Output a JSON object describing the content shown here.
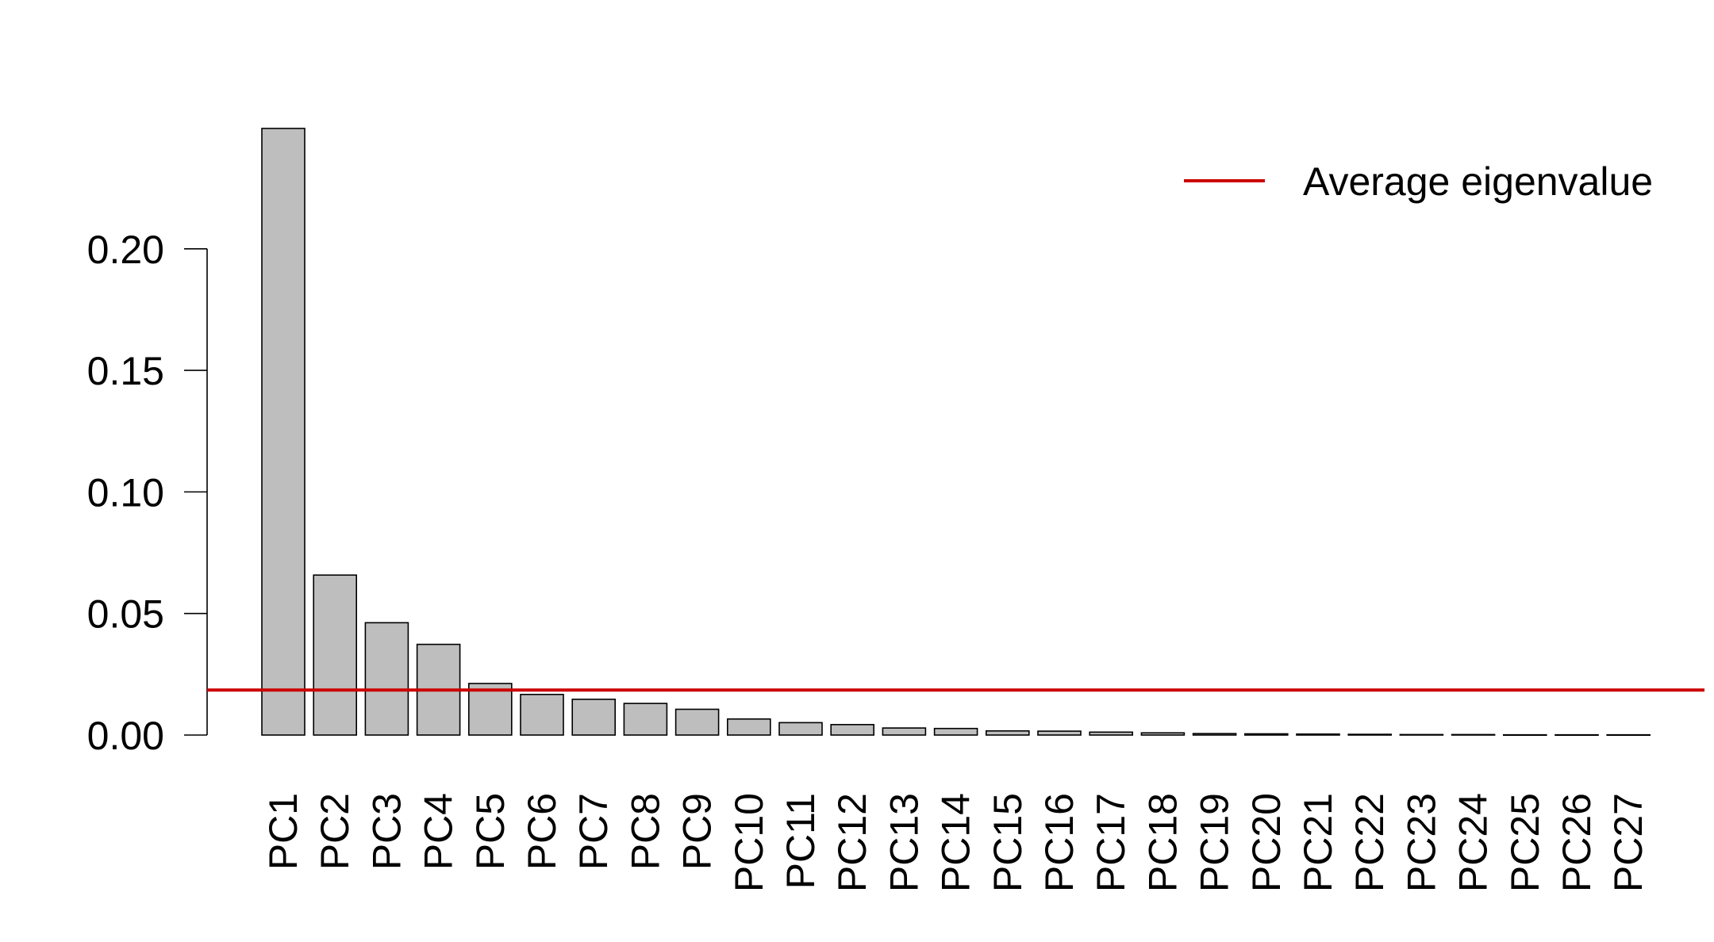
{
  "chart_data": {
    "type": "bar",
    "title": "",
    "xlabel": "",
    "ylabel": "",
    "categories": [
      "PC1",
      "PC2",
      "PC3",
      "PC4",
      "PC5",
      "PC6",
      "PC7",
      "PC8",
      "PC9",
      "PC10",
      "PC11",
      "PC12",
      "PC13",
      "PC14",
      "PC15",
      "PC16",
      "PC17",
      "PC18",
      "PC19",
      "PC20",
      "PC21",
      "PC22",
      "PC23",
      "PC24",
      "PC25",
      "PC26",
      "PC27"
    ],
    "values": [
      0.2495,
      0.0658,
      0.0462,
      0.0373,
      0.0212,
      0.0167,
      0.0147,
      0.013,
      0.0106,
      0.0066,
      0.0051,
      0.0043,
      0.0029,
      0.0027,
      0.0017,
      0.0016,
      0.0012,
      0.0009,
      0.0006,
      0.0005,
      0.0004,
      0.0003,
      0.0002,
      0.0002,
      0.0001,
      0.0001,
      0.0001
    ],
    "yticks": [
      "0.00",
      "0.05",
      "0.10",
      "0.15",
      "0.20"
    ],
    "ytick_values": [
      0.0,
      0.05,
      0.1,
      0.15,
      0.2
    ],
    "ylim": [
      0,
      0.2495
    ],
    "reference_line": {
      "label": "Average eigenvalue",
      "value": 0.0185,
      "color": "#cc0000"
    },
    "legend": {
      "position": "top-right",
      "entries": [
        "Average eigenvalue"
      ]
    },
    "bar_fill": "#bebebe",
    "bar_stroke": "#000000",
    "grid": false
  }
}
